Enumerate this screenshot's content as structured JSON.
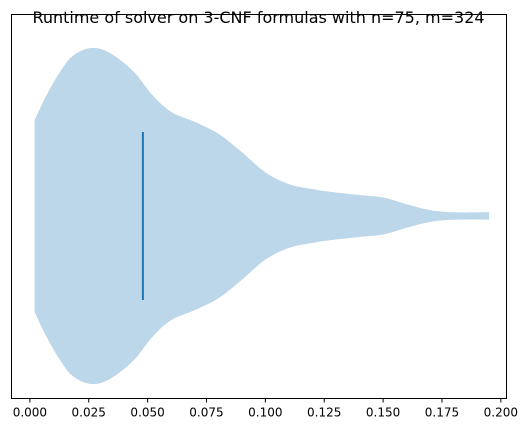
{
  "chart_data": {
    "type": "violin",
    "orientation": "horizontal",
    "title": "Runtime of solver on 3-CNF formulas with n=75, m=324",
    "xlabel": "",
    "ylabel": "",
    "xlim": [
      -0.0078,
      0.2024
    ],
    "x_ticks": [
      0.0,
      0.025,
      0.05,
      0.075,
      0.1,
      0.125,
      0.15,
      0.175,
      0.2
    ],
    "x_tick_labels": [
      "0.000",
      "0.025",
      "0.050",
      "0.075",
      "0.100",
      "0.125",
      "0.150",
      "0.175",
      "0.200"
    ],
    "y_ticks": [],
    "grid": false,
    "legend": "none",
    "violin": {
      "min": 0.002,
      "max": 0.195,
      "mean": 0.048,
      "fill_color": "#bcd6ea",
      "mean_line_color": "#1f77b4",
      "density_profile": [
        [
          0.002,
          0.57
        ],
        [
          0.006,
          0.69
        ],
        [
          0.012,
          0.84
        ],
        [
          0.018,
          0.95
        ],
        [
          0.026,
          1.0
        ],
        [
          0.034,
          0.97
        ],
        [
          0.044,
          0.86
        ],
        [
          0.052,
          0.72
        ],
        [
          0.06,
          0.62
        ],
        [
          0.07,
          0.56
        ],
        [
          0.08,
          0.49
        ],
        [
          0.09,
          0.38
        ],
        [
          0.1,
          0.26
        ],
        [
          0.11,
          0.19
        ],
        [
          0.12,
          0.16
        ],
        [
          0.13,
          0.14
        ],
        [
          0.14,
          0.125
        ],
        [
          0.15,
          0.11
        ],
        [
          0.16,
          0.07
        ],
        [
          0.17,
          0.035
        ],
        [
          0.18,
          0.022
        ],
        [
          0.195,
          0.022
        ]
      ]
    }
  }
}
